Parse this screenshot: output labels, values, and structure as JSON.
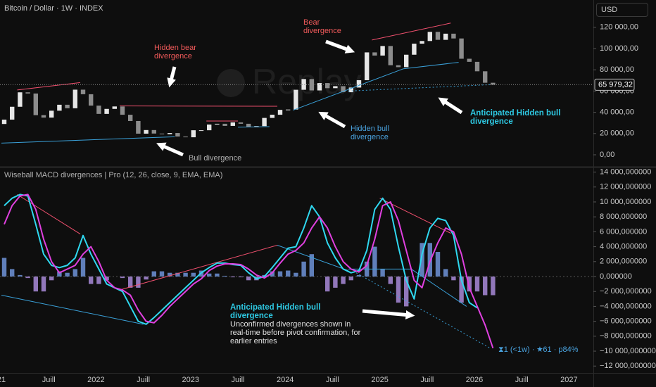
{
  "header": {
    "symbol": "Bitcoin / Dollar · 1W · INDEX",
    "currency": "USD"
  },
  "watermark": "Replay",
  "annotations": {
    "bear": "Bear divergence",
    "hidden_bear": "Hidden bear divergence",
    "bull": "Bull divergence",
    "hidden_bull": "Hidden bull divergence",
    "anticipated_price": "Anticipated Hidden bull divergence",
    "indicator": "Wiseball MACD divergences | Pro (12, 26, close, 9, EMA, EMA)",
    "anticipated_macd": "Anticipated Hidden bull divergence",
    "note": "Unconfirmed divergences shown in real-time before pivot confirmation, for earlier entries",
    "stats": "⧗1 (<1w) · ★61 · p84%"
  },
  "chart_data": [
    {
      "type": "candlestick",
      "x": [
        "2021-01",
        "2021-02",
        "2021-03",
        "2021-04",
        "2021-05",
        "2021-06",
        "2021-07",
        "2021-08",
        "2021-09",
        "2021-10",
        "2021-11",
        "2021-12",
        "2022-01",
        "2022-02",
        "2022-03",
        "2022-04",
        "2022-05",
        "2022-06",
        "2022-07",
        "2022-08",
        "2022-09",
        "2022-10",
        "2022-11",
        "2022-12",
        "2023-01",
        "2023-02",
        "2023-03",
        "2023-04",
        "2023-05",
        "2023-06",
        "2023-07",
        "2023-08",
        "2023-09",
        "2023-10",
        "2023-11",
        "2023-12",
        "2024-01",
        "2024-02",
        "2024-03",
        "2024-04",
        "2024-05",
        "2024-06",
        "2024-07",
        "2024-08",
        "2024-09",
        "2024-10",
        "2024-11",
        "2024-12",
        "2025-01",
        "2025-02",
        "2025-03",
        "2025-04",
        "2025-05",
        "2025-06",
        "2025-07",
        "2025-08",
        "2025-09",
        "2025-10",
        "2025-11",
        "2025-12",
        "2026-01",
        "2026-02",
        "2026-03"
      ],
      "open_first": 29000,
      "close": [
        33100,
        45200,
        58800,
        57700,
        37300,
        35000,
        41500,
        47100,
        43800,
        61300,
        57000,
        46300,
        38500,
        43200,
        45500,
        37700,
        31800,
        19900,
        23300,
        20000,
        19400,
        20500,
        17200,
        16500,
        23100,
        23100,
        28500,
        29200,
        27200,
        30500,
        29200,
        26000,
        27000,
        34700,
        37700,
        42300,
        42600,
        61200,
        71300,
        60600,
        67500,
        62700,
        64600,
        58900,
        63300,
        70200,
        96400,
        93400,
        102400,
        84300,
        82500,
        94200,
        104600,
        107100,
        115700,
        108200,
        114000,
        109500,
        90400,
        87500,
        78600,
        67800,
        65979.32
      ],
      "up_color": "#e6e6e6",
      "down_color": "#8c8c8c",
      "ylim": [
        -11260,
        145700
      ],
      "yticks": [
        {
          "value": 0,
          "label": "0,00"
        },
        {
          "value": 20000,
          "label": "20 000,00"
        },
        {
          "value": 40000,
          "label": "40 000,00"
        },
        {
          "value": 60000,
          "label": "60 000,00"
        },
        {
          "value": 80000,
          "label": "80 000,00"
        },
        {
          "value": 100000,
          "label": "100 000,00"
        },
        {
          "value": 120000,
          "label": "120 000,00"
        }
      ],
      "last_price": {
        "value": 65979.32,
        "label": "65 979,32"
      },
      "divergences": [
        {
          "from": [
            "2021-03",
            61000
          ],
          "to": [
            "2021-11",
            68000
          ],
          "color": "#f0506e",
          "dotted": false
        },
        {
          "from": [
            "2022-04",
            46000
          ],
          "to": [
            "2023-12",
            45700
          ],
          "color": "#f0506e",
          "dotted": false
        },
        {
          "from": [
            "2023-03",
            31800
          ],
          "to": [
            "2023-07",
            31800
          ],
          "color": "#f0506e",
          "dotted": false
        },
        {
          "from": [
            "2024-12",
            108000
          ],
          "to": [
            "2025-10",
            124000
          ],
          "color": "#f0506e",
          "dotted": false
        },
        {
          "from": [
            "2021-01",
            11000
          ],
          "to": [
            "2022-11",
            17000
          ],
          "color": "#3aa0d8",
          "dotted": false
        },
        {
          "from": [
            "2023-07",
            26000
          ],
          "to": [
            "2023-11",
            26500
          ],
          "color": "#3aa0d8",
          "dotted": false
        },
        {
          "from": [
            "2024-02",
            42000
          ],
          "to": [
            "2025-04",
            81000
          ],
          "color": "#3aa0d8",
          "dotted": false
        },
        {
          "from": [
            "2025-04",
            81000
          ],
          "to": [
            "2025-11",
            87000
          ],
          "color": "#3aa0d8",
          "dotted": false
        },
        {
          "from": [
            "2024-09",
            60000
          ],
          "to": [
            "2026-03",
            65979.32
          ],
          "color": "#3aa0d8",
          "dotted": true
        }
      ]
    },
    {
      "type": "macd",
      "x": [
        "2021-01",
        "2021-02",
        "2021-03",
        "2021-04",
        "2021-05",
        "2021-06",
        "2021-07",
        "2021-08",
        "2021-09",
        "2021-10",
        "2021-11",
        "2021-12",
        "2022-01",
        "2022-02",
        "2022-03",
        "2022-04",
        "2022-05",
        "2022-06",
        "2022-07",
        "2022-08",
        "2022-09",
        "2022-10",
        "2022-11",
        "2022-12",
        "2023-01",
        "2023-02",
        "2023-03",
        "2023-04",
        "2023-05",
        "2023-06",
        "2023-07",
        "2023-08",
        "2023-09",
        "2023-10",
        "2023-11",
        "2023-12",
        "2024-01",
        "2024-02",
        "2024-03",
        "2024-04",
        "2024-05",
        "2024-06",
        "2024-07",
        "2024-08",
        "2024-09",
        "2024-10",
        "2024-11",
        "2024-12",
        "2025-01",
        "2025-02",
        "2025-03",
        "2025-04",
        "2025-05",
        "2025-06",
        "2025-07",
        "2025-08",
        "2025-09",
        "2025-10",
        "2025-11",
        "2025-12",
        "2026-01",
        "2026-02",
        "2026-03"
      ],
      "histogram": {
        "positive_color": "#6f93d8",
        "negative_color": "#a88ad8",
        "values": [
          2500000,
          1000000,
          200000,
          -200000,
          -2000000,
          -2000000,
          -500000,
          700000,
          500000,
          1000000,
          2500000,
          -1000000,
          -1000000,
          -500000,
          0,
          -200000,
          -1500000,
          -1500000,
          -400000,
          700000,
          700000,
          500000,
          500000,
          500000,
          500000,
          800000,
          400000,
          400000,
          100000,
          -100000,
          -100000,
          -500000,
          -500000,
          200000,
          700000,
          700000,
          800000,
          500000,
          2000000,
          3000000,
          0,
          -2000000,
          -1500000,
          -1000000,
          -500000,
          200000,
          2000000,
          4000000,
          1000000,
          -1000000,
          -3500000,
          -4000000,
          0,
          4500000,
          4500000,
          3300000,
          1000000,
          -500000,
          -3500000,
          -2000000,
          -2000000,
          -2500000,
          -2500000
        ]
      },
      "series": [
        {
          "name": "MACD",
          "color": "#2fd8f0",
          "values": [
            9500000,
            10500000,
            11000000,
            10800000,
            7000000,
            3000000,
            1500000,
            1200000,
            1500000,
            2500000,
            5500000,
            3000000,
            1000000,
            -1000000,
            -1500000,
            -2000000,
            -4000000,
            -6000000,
            -6400000,
            -5500000,
            -4500000,
            -3500000,
            -2500000,
            -1500000,
            -500000,
            500000,
            1200000,
            1800000,
            1800000,
            1600000,
            1500000,
            500000,
            -300000,
            0,
            1200000,
            2500000,
            3800000,
            4000000,
            6500000,
            9500000,
            8000000,
            4500000,
            2500000,
            1000000,
            500000,
            800000,
            3500000,
            9000000,
            10500000,
            9000000,
            4000000,
            -500000,
            -3000000,
            3000000,
            6500000,
            7800000,
            7500000,
            5500000,
            -500000,
            -3500000,
            -4200000,
            null,
            null
          ]
        },
        {
          "name": "Signal",
          "color": "#e040e0",
          "values": [
            7000000,
            9500000,
            10800000,
            11000000,
            9000000,
            5000000,
            2000000,
            500000,
            1000000,
            1500000,
            3000000,
            4000000,
            2000000,
            -500000,
            -1500000,
            -1800000,
            -2500000,
            -4500000,
            -6000000,
            -6200000,
            -5200000,
            -4000000,
            -3000000,
            -2000000,
            -1000000,
            -300000,
            800000,
            1400000,
            1700000,
            1700000,
            1600000,
            1000000,
            200000,
            -200000,
            500000,
            1800000,
            3000000,
            3500000,
            4500000,
            6500000,
            8000000,
            6500000,
            4000000,
            2000000,
            1000000,
            600000,
            1500000,
            5000000,
            9500000,
            10000000,
            7500000,
            3500000,
            -500000,
            -1500000,
            2000000,
            4500000,
            6500000,
            6000000,
            3000000,
            -1500000,
            -4000000,
            -6500000,
            -9600000
          ]
        }
      ],
      "ylim": [
        -12920000,
        14430000
      ],
      "yticks": [
        {
          "value": 14000000,
          "label": "14 000,000000"
        },
        {
          "value": 12000000,
          "label": "12 000,000000"
        },
        {
          "value": 10000000,
          "label": "10 000,000000"
        },
        {
          "value": 8000000,
          "label": "8 000,000000"
        },
        {
          "value": 6000000,
          "label": "6 000,000000"
        },
        {
          "value": 4000000,
          "label": "4 000,000000"
        },
        {
          "value": 2000000,
          "label": "2 000,000000"
        },
        {
          "value": 0,
          "label": "0,000000"
        },
        {
          "value": -2000000,
          "label": "−2 000,000000"
        },
        {
          "value": -4000000,
          "label": "−4 000,000000"
        },
        {
          "value": -6000000,
          "label": "−6 000,000000"
        },
        {
          "value": -8000000,
          "label": "−8 000,000000"
        },
        {
          "value": -10000000,
          "label": "−10 000,000000"
        },
        {
          "value": -12000000,
          "label": "−12 000,000000"
        }
      ],
      "divergences": [
        {
          "from": [
            "2021-03",
            11000000
          ],
          "to": [
            "2021-11",
            5700000
          ],
          "color": "#f0506e",
          "dotted": false
        },
        {
          "from": [
            "2022-04",
            -1800000
          ],
          "to": [
            "2023-12",
            4200000
          ],
          "color": "#f0506e",
          "dotted": false
        },
        {
          "from": [
            "2025-01",
            10500000
          ],
          "to": [
            "2025-10",
            5800000
          ],
          "color": "#f0506e",
          "dotted": false
        },
        {
          "from": [
            "2021-01",
            -2500000
          ],
          "to": [
            "2022-07",
            -6400000
          ],
          "color": "#3aa0d8",
          "dotted": false
        },
        {
          "from": [
            "2023-12",
            4200000
          ],
          "to": [
            "2024-09",
            800000
          ],
          "color": "#3aa0d8",
          "dotted": false
        },
        {
          "from": [
            "2024-09",
            1000000
          ],
          "to": [
            "2025-05",
            1000000
          ],
          "color": "#3aa0d8",
          "dotted": false
        },
        {
          "from": [
            "2025-05",
            1000000
          ],
          "to": [
            "2025-12",
            -4000000
          ],
          "color": "#3aa0d8",
          "dotted": false
        },
        {
          "from": [
            "2024-10",
            500000
          ],
          "to": [
            "2026-03",
            -9600000
          ],
          "color": "#3aa0d8",
          "dotted": true
        }
      ],
      "xticks": [
        {
          "value": "2021-01",
          "label": "21"
        },
        {
          "value": "2021-07",
          "label": "Juill"
        },
        {
          "value": "2022-01",
          "label": "2022"
        },
        {
          "value": "2022-07",
          "label": "Juill"
        },
        {
          "value": "2023-01",
          "label": "2023"
        },
        {
          "value": "2023-07",
          "label": "Juill"
        },
        {
          "value": "2024-01",
          "label": "2024"
        },
        {
          "value": "2024-07",
          "label": "Juill"
        },
        {
          "value": "2025-01",
          "label": "2025"
        },
        {
          "value": "2025-07",
          "label": "Juill"
        },
        {
          "value": "2026-01",
          "label": "2026"
        },
        {
          "value": "2026-07",
          "label": "Juill"
        },
        {
          "value": "2027-01",
          "label": "2027"
        }
      ]
    }
  ]
}
